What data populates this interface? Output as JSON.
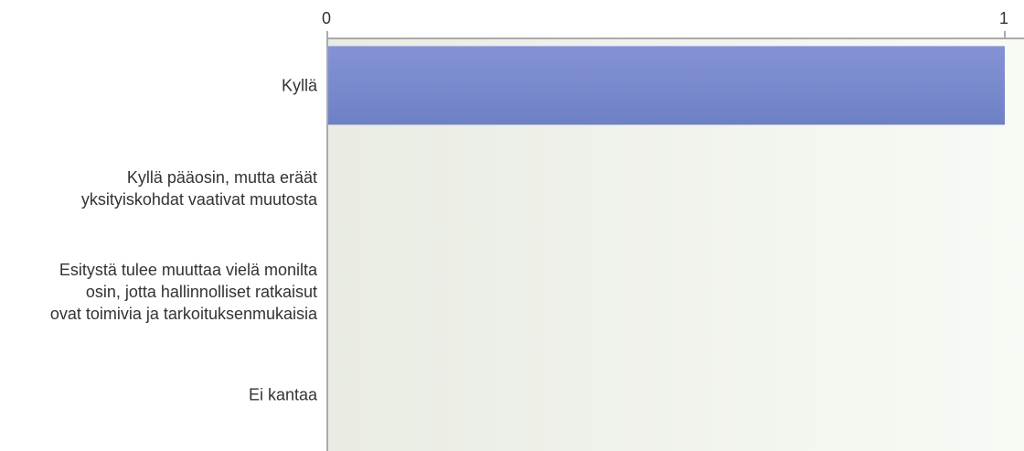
{
  "chart_data": {
    "type": "bar",
    "orientation": "horizontal",
    "categories": [
      [
        "Kyllä"
      ],
      [
        "Kyllä pääosin, mutta eräät",
        "yksityiskohdat vaativat muutosta"
      ],
      [
        "Esitystä tulee muuttaa vielä monilta",
        "osin, jotta hallinnolliset ratkaisut",
        "ovat toimivia ja tarkoituksenmukaisia"
      ],
      [
        "Ei kantaa"
      ]
    ],
    "values": [
      1,
      0,
      0,
      0
    ],
    "xlim": [
      0,
      1
    ],
    "xticks": [
      "0",
      "1"
    ],
    "xtick_values": [
      0,
      1
    ],
    "axis_position": "top",
    "grid": false,
    "colors": {
      "bar_top": "#8593d6",
      "bar_bottom": "#6e80c4",
      "plot_bg_left": "#e9ece3",
      "plot_bg_right": "#f8faf5",
      "axis": "#aaaaaa"
    }
  }
}
